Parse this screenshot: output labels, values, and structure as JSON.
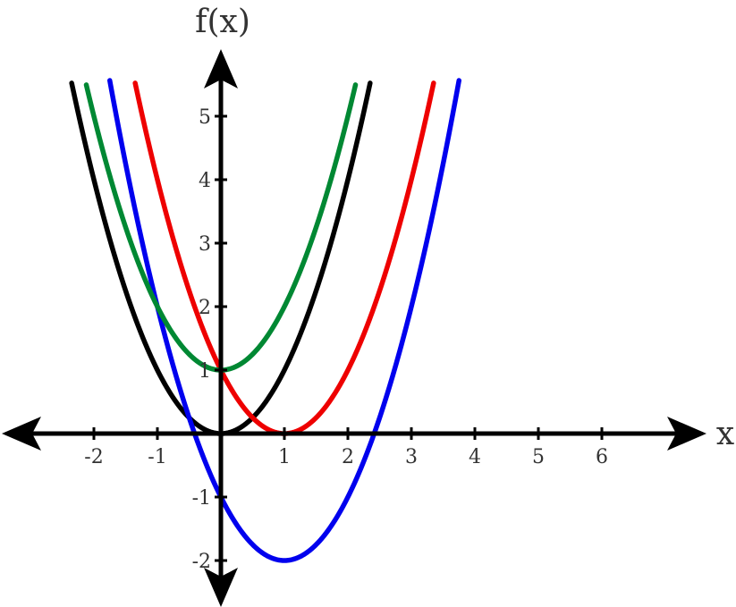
{
  "chart_data": {
    "type": "line",
    "xlabel": "x",
    "ylabel": "f(x)",
    "xlim": [
      -2.0,
      6.5
    ],
    "ylim": [
      -2.2,
      5.5
    ],
    "x_ticks": [
      {
        "value": -2,
        "label": "-2"
      },
      {
        "value": -1,
        "label": "-1"
      },
      {
        "value": 1,
        "label": "1"
      },
      {
        "value": 2,
        "label": "2"
      },
      {
        "value": 3,
        "label": "3"
      },
      {
        "value": 4,
        "label": "4"
      },
      {
        "value": 5,
        "label": "5"
      },
      {
        "value": 6,
        "label": "6"
      }
    ],
    "y_ticks": [
      {
        "value": -2,
        "label": "-2"
      },
      {
        "value": -1,
        "label": "-1"
      },
      {
        "value": 1,
        "label": "1"
      },
      {
        "value": 2,
        "label": "2"
      },
      {
        "value": 3,
        "label": "3"
      },
      {
        "value": 4,
        "label": "4"
      },
      {
        "value": 5,
        "label": "5"
      }
    ],
    "grid": false,
    "series": [
      {
        "color": "#000000",
        "function": "x^2",
        "domain": [
          -2.35,
          2.35
        ]
      },
      {
        "color": "#ee0000",
        "function": "(x-1)^2",
        "domain": [
          -1.35,
          3.35
        ]
      },
      {
        "color": "#0000ee",
        "function": "(x-1)^2-2",
        "domain": [
          -1.75,
          3.75
        ]
      },
      {
        "color": "#008833",
        "function": "x^2+1",
        "domain": [
          -2.12,
          2.12
        ]
      }
    ]
  }
}
